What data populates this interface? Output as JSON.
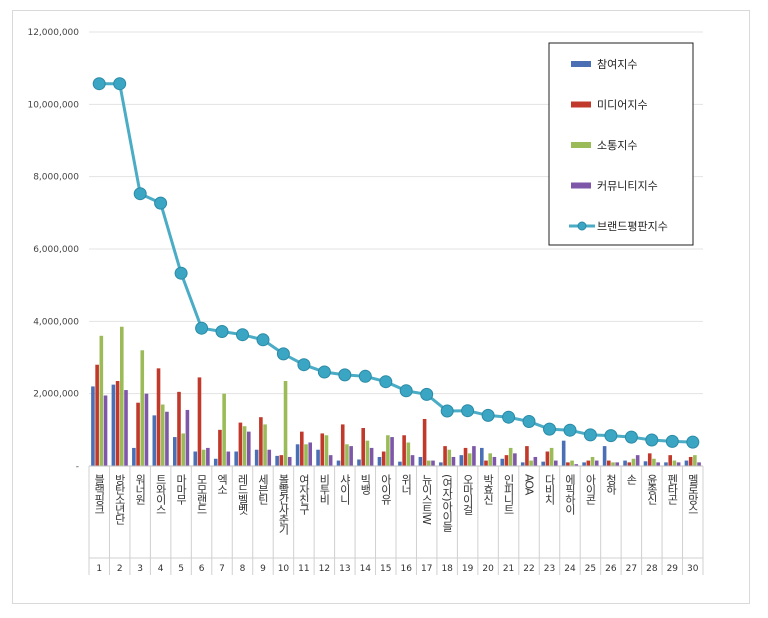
{
  "chart_data": {
    "type": "bar",
    "title": "",
    "xlabel": "",
    "ylabel": "",
    "ylim": [
      0,
      12000000
    ],
    "y_ticks": [
      "-",
      "2,000,000",
      "4,000,000",
      "6,000,000",
      "8,000,000",
      "10,000,000",
      "12,000,000"
    ],
    "y_tick_values": [
      0,
      2000000,
      4000000,
      6000000,
      8000000,
      10000000,
      12000000
    ],
    "grid": true,
    "legend_position": "top-right",
    "categories": [
      "블랙핑크",
      "방탄소년단",
      "워너원",
      "트와이스",
      "마마무",
      "모모랜드",
      "엑소",
      "레드벨벳",
      "세븐틴",
      "볼빨간사춘기",
      "여자친구",
      "비투비",
      "샤이니",
      "빅뱅",
      "아이유",
      "위너",
      "뉴이스트W",
      "(여자)아이들",
      "오마이걸",
      "박효신",
      "인피니트",
      "AOA",
      "다비치",
      "에픽하이",
      "아이콘",
      "청하",
      "손",
      "윤종신",
      "펜타곤",
      "멜로망스"
    ],
    "ranks": [
      "1",
      "2",
      "3",
      "4",
      "5",
      "6",
      "7",
      "8",
      "9",
      "10",
      "11",
      "12",
      "13",
      "14",
      "15",
      "16",
      "17",
      "18",
      "19",
      "20",
      "21",
      "22",
      "23",
      "24",
      "25",
      "26",
      "27",
      "28",
      "29",
      "30"
    ],
    "series": [
      {
        "name": "참여지수",
        "kind": "bar",
        "color": "#4a6fb5",
        "values": [
          2200000,
          2250000,
          500000,
          1400000,
          800000,
          400000,
          200000,
          400000,
          450000,
          280000,
          600000,
          450000,
          150000,
          180000,
          250000,
          120000,
          250000,
          100000,
          300000,
          500000,
          200000,
          100000,
          120000,
          700000,
          100000,
          550000,
          150000,
          130000,
          100000,
          150000
        ]
      },
      {
        "name": "미디어지수",
        "kind": "bar",
        "color": "#c0392b",
        "values": [
          2800000,
          2350000,
          1750000,
          2700000,
          2050000,
          2450000,
          1000000,
          1200000,
          1350000,
          300000,
          950000,
          900000,
          1150000,
          1050000,
          400000,
          850000,
          1300000,
          550000,
          500000,
          150000,
          300000,
          550000,
          400000,
          100000,
          150000,
          150000,
          100000,
          350000,
          300000,
          250000
        ]
      },
      {
        "name": "소통지수",
        "kind": "bar",
        "color": "#9bbb59",
        "values": [
          3600000,
          3850000,
          3200000,
          1700000,
          900000,
          450000,
          2000000,
          1100000,
          1150000,
          2350000,
          600000,
          850000,
          600000,
          700000,
          850000,
          650000,
          150000,
          450000,
          350000,
          350000,
          500000,
          150000,
          500000,
          150000,
          250000,
          100000,
          200000,
          200000,
          150000,
          300000
        ]
      },
      {
        "name": "커뮤니티지수",
        "kind": "bar",
        "color": "#7e57a8",
        "values": [
          1950000,
          2100000,
          2000000,
          1500000,
          1550000,
          500000,
          400000,
          950000,
          450000,
          250000,
          650000,
          300000,
          550000,
          500000,
          800000,
          300000,
          150000,
          250000,
          550000,
          250000,
          350000,
          250000,
          150000,
          50000,
          150000,
          100000,
          300000,
          100000,
          100000,
          100000
        ]
      },
      {
        "name": "브랜드평판지수",
        "kind": "line",
        "color": "#4bacc6",
        "values": [
          10570000,
          10570000,
          7530000,
          7270000,
          5330000,
          3810000,
          3720000,
          3630000,
          3490000,
          3100000,
          2800000,
          2600000,
          2520000,
          2480000,
          2330000,
          2080000,
          1980000,
          1520000,
          1530000,
          1400000,
          1350000,
          1230000,
          1020000,
          990000,
          860000,
          840000,
          800000,
          720000,
          680000,
          660000
        ]
      }
    ]
  }
}
